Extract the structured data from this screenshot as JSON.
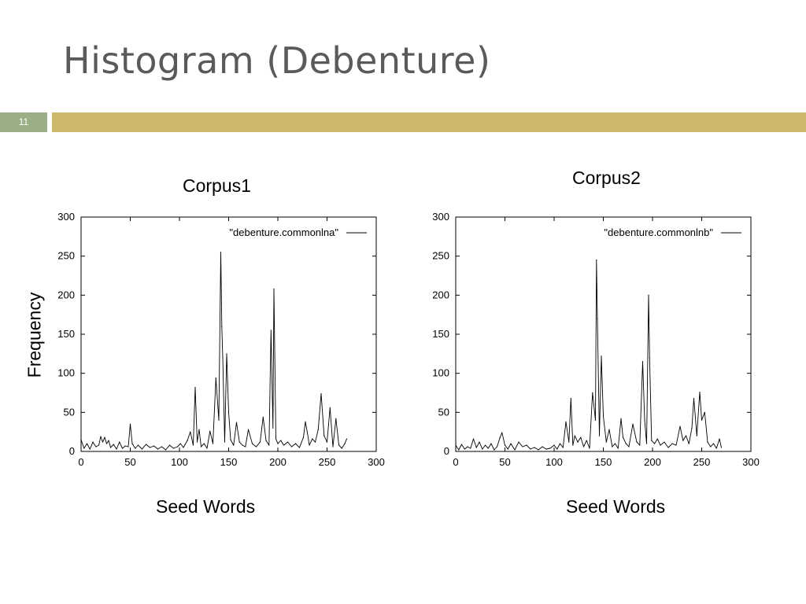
{
  "slide": {
    "title": "Histogram (Debenture)",
    "slide_number": "11"
  },
  "labels": {
    "corpus1": "Corpus1",
    "corpus2": "Corpus2",
    "ylabel": "Frequency",
    "xlabel_left": "Seed Words",
    "xlabel_right": "Seed Words"
  },
  "colors": {
    "title": "#5a5a5a",
    "number_box": "#9aaf86",
    "accent_bar": "#cdb96a",
    "line": "#000000"
  },
  "chart_data": [
    {
      "type": "line",
      "title": "Corpus1",
      "xlabel": "Seed Words",
      "ylabel": "Frequency",
      "xlim": [
        0,
        300
      ],
      "ylim": [
        0,
        300
      ],
      "xticks": [
        0,
        50,
        100,
        150,
        200,
        250,
        300
      ],
      "yticks": [
        0,
        50,
        100,
        150,
        200,
        250,
        300
      ],
      "grid": false,
      "legend": "top-right",
      "series": [
        {
          "name": "\"debenture.commonlna\"",
          "x": [
            0,
            3,
            6,
            9,
            12,
            15,
            18,
            20,
            22,
            24,
            26,
            28,
            30,
            33,
            36,
            39,
            42,
            45,
            48,
            50,
            52,
            55,
            58,
            62,
            66,
            70,
            74,
            78,
            82,
            86,
            90,
            94,
            98,
            101,
            104,
            108,
            111,
            114,
            116,
            118,
            120,
            122,
            125,
            128,
            131,
            134,
            137,
            140,
            142,
            143,
            144,
            146,
            148,
            150,
            152,
            155,
            158,
            161,
            164,
            167,
            170,
            174,
            178,
            182,
            185,
            188,
            191,
            193,
            195,
            196,
            198,
            200,
            203,
            206,
            210,
            214,
            218,
            222,
            226,
            228,
            230,
            232,
            235,
            238,
            241,
            244,
            247,
            250,
            253,
            256,
            259,
            262,
            265,
            268,
            270
          ],
          "y": [
            15,
            4,
            10,
            3,
            12,
            6,
            8,
            19,
            12,
            18,
            10,
            14,
            5,
            9,
            3,
            12,
            4,
            7,
            6,
            35,
            10,
            4,
            8,
            3,
            9,
            5,
            7,
            3,
            6,
            2,
            8,
            4,
            6,
            10,
            5,
            14,
            25,
            8,
            82,
            12,
            28,
            6,
            10,
            4,
            26,
            10,
            94,
            40,
            255,
            160,
            120,
            12,
            125,
            50,
            15,
            8,
            37,
            12,
            8,
            6,
            28,
            10,
            6,
            12,
            44,
            14,
            8,
            155,
            30,
            208,
            16,
            10,
            14,
            8,
            12,
            6,
            10,
            5,
            18,
            38,
            24,
            8,
            16,
            12,
            28,
            74,
            20,
            12,
            56,
            6,
            42,
            8,
            4,
            10,
            16
          ]
        }
      ]
    },
    {
      "type": "line",
      "title": "Corpus2",
      "xlabel": "Seed Words",
      "ylabel": "",
      "xlim": [
        0,
        300
      ],
      "ylim": [
        0,
        300
      ],
      "xticks": [
        0,
        50,
        100,
        150,
        200,
        250,
        300
      ],
      "yticks": [
        0,
        50,
        100,
        150,
        200,
        250,
        300
      ],
      "grid": false,
      "legend": "top-right",
      "series": [
        {
          "name": "\"debenture.commonlnb\"",
          "x": [
            0,
            3,
            6,
            9,
            12,
            15,
            18,
            21,
            24,
            27,
            30,
            33,
            36,
            39,
            42,
            45,
            47,
            50,
            53,
            56,
            60,
            64,
            68,
            72,
            76,
            80,
            84,
            88,
            92,
            96,
            100,
            103,
            106,
            109,
            112,
            115,
            117,
            119,
            121,
            124,
            127,
            130,
            133,
            136,
            139,
            142,
            143,
            144,
            146,
            148,
            150,
            153,
            156,
            159,
            162,
            165,
            168,
            170,
            173,
            176,
            180,
            184,
            187,
            190,
            192,
            194,
            196,
            197,
            199,
            202,
            205,
            208,
            212,
            216,
            220,
            224,
            228,
            231,
            234,
            237,
            240,
            242,
            245,
            248,
            250,
            253,
            256,
            259,
            262,
            265,
            268,
            270
          ],
          "y": [
            8,
            2,
            9,
            3,
            6,
            4,
            16,
            5,
            12,
            3,
            8,
            4,
            10,
            2,
            6,
            18,
            24,
            8,
            3,
            10,
            2,
            12,
            6,
            8,
            3,
            5,
            2,
            6,
            3,
            4,
            8,
            3,
            10,
            5,
            38,
            12,
            68,
            8,
            20,
            12,
            18,
            6,
            14,
            4,
            75,
            40,
            245,
            170,
            20,
            122,
            45,
            12,
            28,
            6,
            10,
            4,
            42,
            18,
            10,
            6,
            35,
            12,
            8,
            115,
            40,
            10,
            200,
            120,
            14,
            10,
            16,
            8,
            12,
            5,
            10,
            8,
            32,
            14,
            20,
            10,
            30,
            68,
            20,
            76,
            40,
            50,
            12,
            6,
            10,
            4,
            16,
            5
          ]
        }
      ]
    }
  ]
}
